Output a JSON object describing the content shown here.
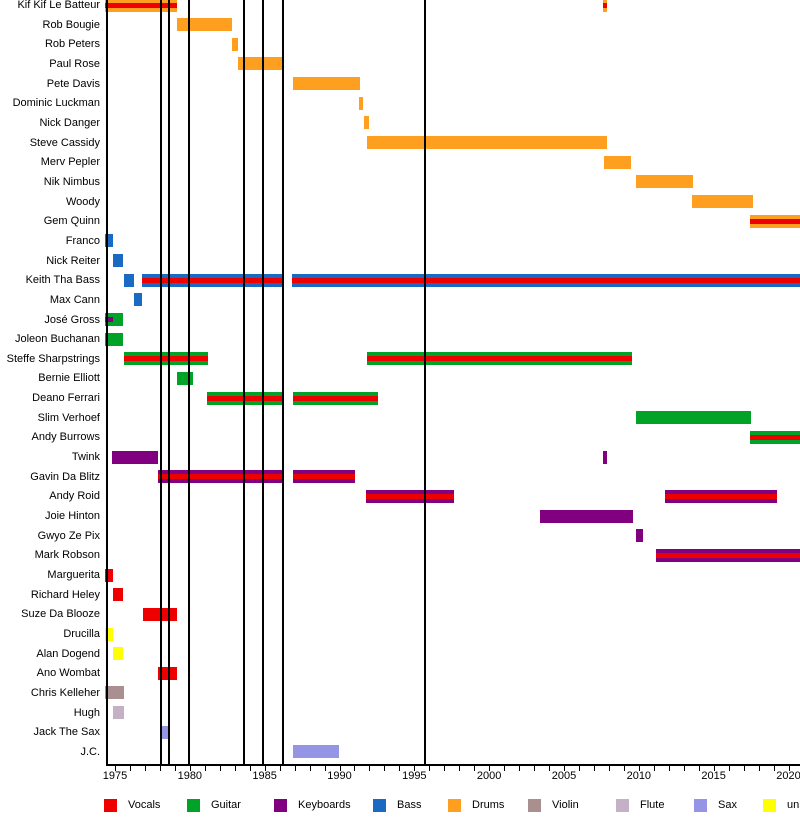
{
  "chart_data": {
    "type": "timeline",
    "description": "Band members timeline (gantt) chart: membership periods per person, colored by instrument, red stripe = also vocals",
    "x_axis": {
      "label_years": [
        1975,
        1980,
        1985,
        1990,
        1995,
        2000,
        2005,
        2010,
        2015,
        2020
      ],
      "minor_tick_every_year": true,
      "range_start": 1974.4,
      "range_end": 2020.8
    },
    "event_line_years": [
      1978.05,
      1978.6,
      1979.95,
      1983.6,
      1984.9,
      1986.2,
      1995.7
    ],
    "legend": [
      {
        "label": "Vocals",
        "color": "#ee0000"
      },
      {
        "label": "Guitar",
        "color": "#00a327"
      },
      {
        "label": "Keyboards",
        "color": "#800080"
      },
      {
        "label": "Bass",
        "color": "#1a6ac4"
      },
      {
        "label": "Drums",
        "color": "#ff9f1f"
      },
      {
        "label": "Violin",
        "color": "#a98f8f"
      },
      {
        "label": "Flute",
        "color": "#c5b1c5"
      },
      {
        "label": "Sax",
        "color": "#9595e6"
      },
      {
        "label": "unknown",
        "color": "#ffff00"
      }
    ],
    "members": [
      {
        "name": "Kif Kif Le Batteur",
        "stints": [
          {
            "from": 1974.35,
            "to": 1979.15,
            "roles": [
              "Drums",
              "Vocals"
            ]
          },
          {
            "from": 2007.6,
            "to": 2007.9,
            "roles": [
              "Drums",
              "Vocals"
            ]
          }
        ]
      },
      {
        "name": "Rob Bougie",
        "stints": [
          {
            "from": 1979.15,
            "to": 1982.8,
            "roles": [
              "Drums"
            ]
          }
        ]
      },
      {
        "name": "Rob Peters",
        "stints": [
          {
            "from": 1982.8,
            "to": 1983.25,
            "roles": [
              "Drums"
            ]
          }
        ]
      },
      {
        "name": "Paul Rose",
        "stints": [
          {
            "from": 1983.25,
            "to": 1986.2,
            "roles": [
              "Drums"
            ]
          }
        ]
      },
      {
        "name": "Pete Davis",
        "stints": [
          {
            "from": 1986.9,
            "to": 1991.35,
            "roles": [
              "Drums"
            ]
          }
        ]
      },
      {
        "name": "Dominic Luckman",
        "stints": [
          {
            "from": 1991.3,
            "to": 1991.6,
            "roles": [
              "Drums"
            ]
          }
        ]
      },
      {
        "name": "Nick Danger",
        "stints": [
          {
            "from": 1991.65,
            "to": 1991.95,
            "roles": [
              "Drums"
            ]
          }
        ]
      },
      {
        "name": "Steve Cassidy",
        "stints": [
          {
            "from": 1991.85,
            "to": 2007.9,
            "roles": [
              "Drums"
            ]
          }
        ]
      },
      {
        "name": "Merv Pepler",
        "stints": [
          {
            "from": 2007.65,
            "to": 2009.5,
            "roles": [
              "Drums"
            ]
          }
        ]
      },
      {
        "name": "Nik Nimbus",
        "stints": [
          {
            "from": 2009.8,
            "to": 2013.6,
            "roles": [
              "Drums"
            ]
          }
        ]
      },
      {
        "name": "Woody",
        "stints": [
          {
            "from": 2013.55,
            "to": 2017.6,
            "roles": [
              "Drums"
            ]
          }
        ]
      },
      {
        "name": "Gem Quinn",
        "stints": [
          {
            "from": 2017.4,
            "to": 2020.8,
            "roles": [
              "Drums",
              "Vocals"
            ]
          }
        ]
      },
      {
        "name": "Franco",
        "stints": [
          {
            "from": 1974.35,
            "to": 1974.85,
            "roles": [
              "Bass"
            ]
          }
        ]
      },
      {
        "name": "Nick Reiter",
        "stints": [
          {
            "from": 1974.85,
            "to": 1975.55,
            "roles": [
              "Bass"
            ]
          }
        ]
      },
      {
        "name": "Keith Tha Bass",
        "stints": [
          {
            "from": 1975.6,
            "to": 1976.3,
            "roles": [
              "Bass"
            ]
          },
          {
            "from": 1976.8,
            "to": 1986.2,
            "roles": [
              "Bass",
              "Vocals"
            ]
          },
          {
            "from": 1986.85,
            "to": 2020.8,
            "roles": [
              "Bass",
              "Vocals"
            ]
          }
        ]
      },
      {
        "name": "Max Cann",
        "stints": [
          {
            "from": 1976.25,
            "to": 1976.8,
            "roles": [
              "Bass"
            ]
          }
        ]
      },
      {
        "name": "José Gross",
        "stints": [
          {
            "from": 1974.35,
            "to": 1975.55,
            "roles": [
              "Guitar"
            ]
          },
          {
            "from": 1974.35,
            "to": 1974.85,
            "roles": [
              "Keyboards"
            ],
            "stripe_only": true
          }
        ]
      },
      {
        "name": "Joleon Buchanan",
        "stints": [
          {
            "from": 1974.35,
            "to": 1975.55,
            "roles": [
              "Guitar"
            ]
          }
        ]
      },
      {
        "name": "Steffe Sharpstrings",
        "stints": [
          {
            "from": 1975.6,
            "to": 1981.2,
            "roles": [
              "Guitar",
              "Vocals"
            ]
          },
          {
            "from": 1991.85,
            "to": 2009.55,
            "roles": [
              "Guitar",
              "Vocals"
            ]
          }
        ]
      },
      {
        "name": "Bernie Elliott",
        "stints": [
          {
            "from": 1979.15,
            "to": 1980.2,
            "roles": [
              "Guitar"
            ]
          }
        ]
      },
      {
        "name": "Deano Ferrari",
        "stints": [
          {
            "from": 1981.15,
            "to": 1986.2,
            "roles": [
              "Guitar",
              "Vocals"
            ]
          },
          {
            "from": 1986.9,
            "to": 1992.6,
            "roles": [
              "Guitar",
              "Vocals"
            ]
          }
        ]
      },
      {
        "name": "Slim Verhoef",
        "stints": [
          {
            "from": 2009.8,
            "to": 2017.5,
            "roles": [
              "Guitar"
            ]
          }
        ]
      },
      {
        "name": "Andy Burrows",
        "stints": [
          {
            "from": 2017.4,
            "to": 2020.8,
            "roles": [
              "Guitar",
              "Vocals"
            ]
          }
        ]
      },
      {
        "name": "Twink",
        "stints": [
          {
            "from": 1974.8,
            "to": 1977.85,
            "roles": [
              "Keyboards"
            ]
          },
          {
            "from": 2007.6,
            "to": 2007.85,
            "roles": [
              "Keyboards"
            ]
          }
        ]
      },
      {
        "name": "Gavin Da Blitz",
        "stints": [
          {
            "from": 1977.85,
            "to": 1986.2,
            "roles": [
              "Keyboards",
              "Vocals"
            ]
          },
          {
            "from": 1986.9,
            "to": 1991.05,
            "roles": [
              "Keyboards",
              "Vocals"
            ]
          }
        ]
      },
      {
        "name": "Andy Roid",
        "stints": [
          {
            "from": 1991.8,
            "to": 1997.65,
            "roles": [
              "Keyboards",
              "Vocals"
            ]
          },
          {
            "from": 2011.75,
            "to": 2019.2,
            "roles": [
              "Keyboards",
              "Vocals"
            ]
          }
        ]
      },
      {
        "name": "Joie Hinton",
        "stints": [
          {
            "from": 2003.4,
            "to": 2009.6,
            "roles": [
              "Keyboards"
            ]
          }
        ]
      },
      {
        "name": "Gwyo Ze Pix",
        "stints": [
          {
            "from": 2009.8,
            "to": 2010.3,
            "roles": [
              "Keyboards"
            ]
          }
        ]
      },
      {
        "name": "Mark Robson",
        "stints": [
          {
            "from": 2011.15,
            "to": 2020.8,
            "roles": [
              "Keyboards",
              "Vocals"
            ]
          }
        ]
      },
      {
        "name": "Marguerita",
        "stints": [
          {
            "from": 1974.35,
            "to": 1974.85,
            "roles": [
              "Vocals"
            ]
          }
        ]
      },
      {
        "name": "Richard Heley",
        "stints": [
          {
            "from": 1974.85,
            "to": 1975.55,
            "roles": [
              "Vocals"
            ]
          }
        ]
      },
      {
        "name": "Suze Da Blooze",
        "stints": [
          {
            "from": 1976.85,
            "to": 1979.15,
            "roles": [
              "Vocals"
            ]
          }
        ]
      },
      {
        "name": "Drucilla",
        "stints": [
          {
            "from": 1974.35,
            "to": 1974.85,
            "roles": [
              "unknown"
            ]
          }
        ]
      },
      {
        "name": "Alan Dogend",
        "stints": [
          {
            "from": 1974.85,
            "to": 1975.55,
            "roles": [
              "unknown"
            ]
          }
        ]
      },
      {
        "name": "Ano Wombat",
        "stints": [
          {
            "from": 1977.85,
            "to": 1979.15,
            "roles": [
              "Vocals"
            ]
          }
        ]
      },
      {
        "name": "Chris Kelleher",
        "stints": [
          {
            "from": 1974.35,
            "to": 1975.6,
            "roles": [
              "Violin"
            ]
          }
        ]
      },
      {
        "name": "Hugh",
        "stints": [
          {
            "from": 1974.85,
            "to": 1975.6,
            "roles": [
              "Flute"
            ]
          }
        ]
      },
      {
        "name": "Jack The Sax",
        "stints": [
          {
            "from": 1978.1,
            "to": 1978.6,
            "roles": [
              "Sax"
            ]
          }
        ]
      },
      {
        "name": "J.C.",
        "stints": [
          {
            "from": 1986.9,
            "to": 1989.95,
            "roles": [
              "Sax"
            ]
          }
        ]
      }
    ]
  }
}
